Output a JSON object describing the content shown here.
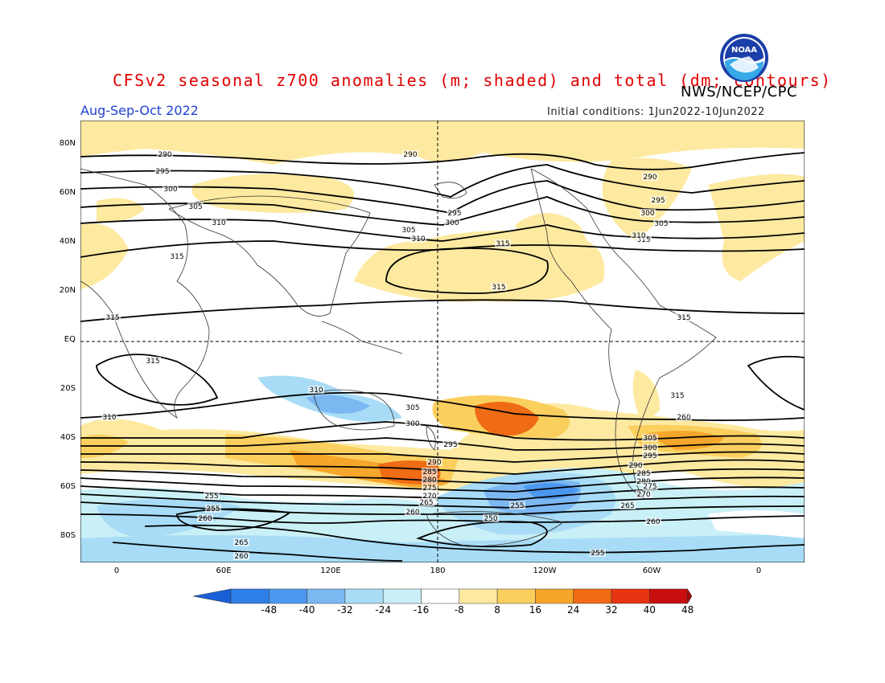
{
  "header": {
    "title": "CFSv2 seasonal z700 anomalies (m; shaded) and total (dm; contours)",
    "agency": "NWS/NCEP/CPC",
    "season": "Aug-Sep-Oct 2022",
    "initial_conditions": "Initial conditions: 1Jun2022-10Jun2022",
    "logo_text": "NOAA"
  },
  "axes": {
    "lat_labels": [
      "80N",
      "60N",
      "40N",
      "20N",
      "EQ",
      "20S",
      "40S",
      "60S",
      "80S"
    ],
    "lon_labels": [
      "0",
      "60E",
      "120E",
      "180",
      "120W",
      "60W",
      "0"
    ]
  },
  "colorbar": {
    "labels": [
      "-48",
      "-40",
      "-32",
      "-24",
      "-16",
      "-8",
      "8",
      "16",
      "24",
      "32",
      "40",
      "48"
    ],
    "colors": [
      "#1a5fd8",
      "#2f7fe8",
      "#4d98ef",
      "#7bb8f2",
      "#a8dcf6",
      "#c9f0f7",
      "#ffffff",
      "#fde9a0",
      "#fbcf5e",
      "#f7a62c",
      "#ef6b14",
      "#e63510",
      "#c80e0e",
      "#a00505"
    ]
  },
  "contour_labels": [
    "290",
    "295",
    "300",
    "305",
    "310",
    "315",
    "315",
    "315",
    "315",
    "290",
    "295",
    "300",
    "305",
    "310",
    "315",
    "315",
    "315",
    "290",
    "295",
    "300",
    "305",
    "310",
    "315",
    "310",
    "310",
    "305",
    "300",
    "295",
    "290",
    "285",
    "280",
    "275",
    "270",
    "265",
    "260",
    "305",
    "300",
    "295",
    "290",
    "285",
    "280",
    "275",
    "270",
    "265",
    "260",
    "255",
    "255",
    "260",
    "265",
    "260",
    "250",
    "255",
    "255",
    "260"
  ]
}
